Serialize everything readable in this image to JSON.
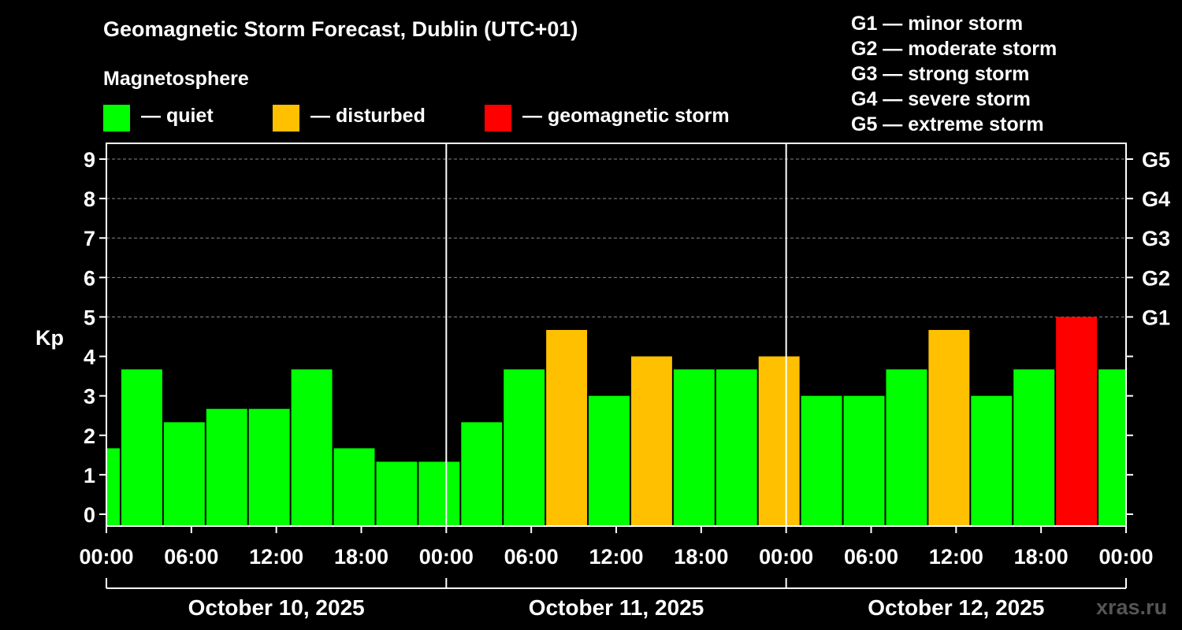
{
  "title": "Geomagnetic Storm Forecast, Dublin (UTC+01)",
  "subtitle": "Magnetosphere",
  "legend": [
    {
      "label": "— quiet",
      "color": "#00ff00"
    },
    {
      "label": "— disturbed",
      "color": "#ffc000"
    },
    {
      "label": "— geomagnetic storm",
      "color": "#ff0000"
    }
  ],
  "scale": [
    {
      "code": "G1",
      "label": "G1 — minor storm"
    },
    {
      "code": "G2",
      "label": "G2 — moderate storm"
    },
    {
      "code": "G3",
      "label": "G3 — strong storm"
    },
    {
      "code": "G4",
      "label": "G4 — severe storm"
    },
    {
      "code": "G5",
      "label": "G5 — extreme storm"
    }
  ],
  "watermark": "xras.ru",
  "chart_data": {
    "type": "bar",
    "ylabel": "Kp",
    "ylim": [
      -0.3,
      9.4
    ],
    "yticks": [
      0,
      1,
      2,
      3,
      4,
      5,
      6,
      7,
      8,
      9
    ],
    "right_axis": [
      {
        "kp": 5,
        "label": "G1"
      },
      {
        "kp": 6,
        "label": "G2"
      },
      {
        "kp": 7,
        "label": "G3"
      },
      {
        "kp": 8,
        "label": "G4"
      },
      {
        "kp": 9,
        "label": "G5"
      }
    ],
    "xlim_hours": [
      0,
      72
    ],
    "xtick_hours": [
      0,
      6,
      12,
      18,
      24,
      30,
      36,
      42,
      48,
      54,
      60,
      66,
      72
    ],
    "xtick_labels": [
      "00:00",
      "06:00",
      "12:00",
      "18:00",
      "00:00",
      "06:00",
      "12:00",
      "18:00",
      "00:00",
      "06:00",
      "12:00",
      "18:00",
      "00:00"
    ],
    "days": [
      "October 10, 2025",
      "October 11, 2025",
      "October 12, 2025"
    ],
    "grid": true,
    "colors": {
      "quiet": "#00ff00",
      "disturbed": "#ffc000",
      "storm": "#ff0000"
    },
    "bars": [
      {
        "start_hour": 0,
        "end_hour": 1,
        "kp": 1.67,
        "level": "quiet"
      },
      {
        "start_hour": 1,
        "end_hour": 4,
        "kp": 3.67,
        "level": "quiet"
      },
      {
        "start_hour": 4,
        "end_hour": 7,
        "kp": 2.33,
        "level": "quiet"
      },
      {
        "start_hour": 7,
        "end_hour": 10,
        "kp": 2.67,
        "level": "quiet"
      },
      {
        "start_hour": 10,
        "end_hour": 13,
        "kp": 2.67,
        "level": "quiet"
      },
      {
        "start_hour": 13,
        "end_hour": 16,
        "kp": 3.67,
        "level": "quiet"
      },
      {
        "start_hour": 16,
        "end_hour": 19,
        "kp": 1.67,
        "level": "quiet"
      },
      {
        "start_hour": 19,
        "end_hour": 22,
        "kp": 1.33,
        "level": "quiet"
      },
      {
        "start_hour": 22,
        "end_hour": 25,
        "kp": 1.33,
        "level": "quiet"
      },
      {
        "start_hour": 25,
        "end_hour": 28,
        "kp": 2.33,
        "level": "quiet"
      },
      {
        "start_hour": 28,
        "end_hour": 31,
        "kp": 3.67,
        "level": "quiet"
      },
      {
        "start_hour": 31,
        "end_hour": 34,
        "kp": 4.67,
        "level": "disturbed"
      },
      {
        "start_hour": 34,
        "end_hour": 37,
        "kp": 3.0,
        "level": "quiet"
      },
      {
        "start_hour": 37,
        "end_hour": 40,
        "kp": 4.0,
        "level": "disturbed"
      },
      {
        "start_hour": 40,
        "end_hour": 43,
        "kp": 3.67,
        "level": "quiet"
      },
      {
        "start_hour": 43,
        "end_hour": 46,
        "kp": 3.67,
        "level": "quiet"
      },
      {
        "start_hour": 46,
        "end_hour": 49,
        "kp": 4.0,
        "level": "disturbed"
      },
      {
        "start_hour": 49,
        "end_hour": 52,
        "kp": 3.0,
        "level": "quiet"
      },
      {
        "start_hour": 52,
        "end_hour": 55,
        "kp": 3.0,
        "level": "quiet"
      },
      {
        "start_hour": 55,
        "end_hour": 58,
        "kp": 3.67,
        "level": "quiet"
      },
      {
        "start_hour": 58,
        "end_hour": 61,
        "kp": 4.67,
        "level": "disturbed"
      },
      {
        "start_hour": 61,
        "end_hour": 64,
        "kp": 3.0,
        "level": "quiet"
      },
      {
        "start_hour": 64,
        "end_hour": 67,
        "kp": 3.67,
        "level": "quiet"
      },
      {
        "start_hour": 67,
        "end_hour": 70,
        "kp": 5.0,
        "level": "storm"
      },
      {
        "start_hour": 70,
        "end_hour": 72,
        "kp": 3.67,
        "level": "quiet"
      }
    ]
  }
}
